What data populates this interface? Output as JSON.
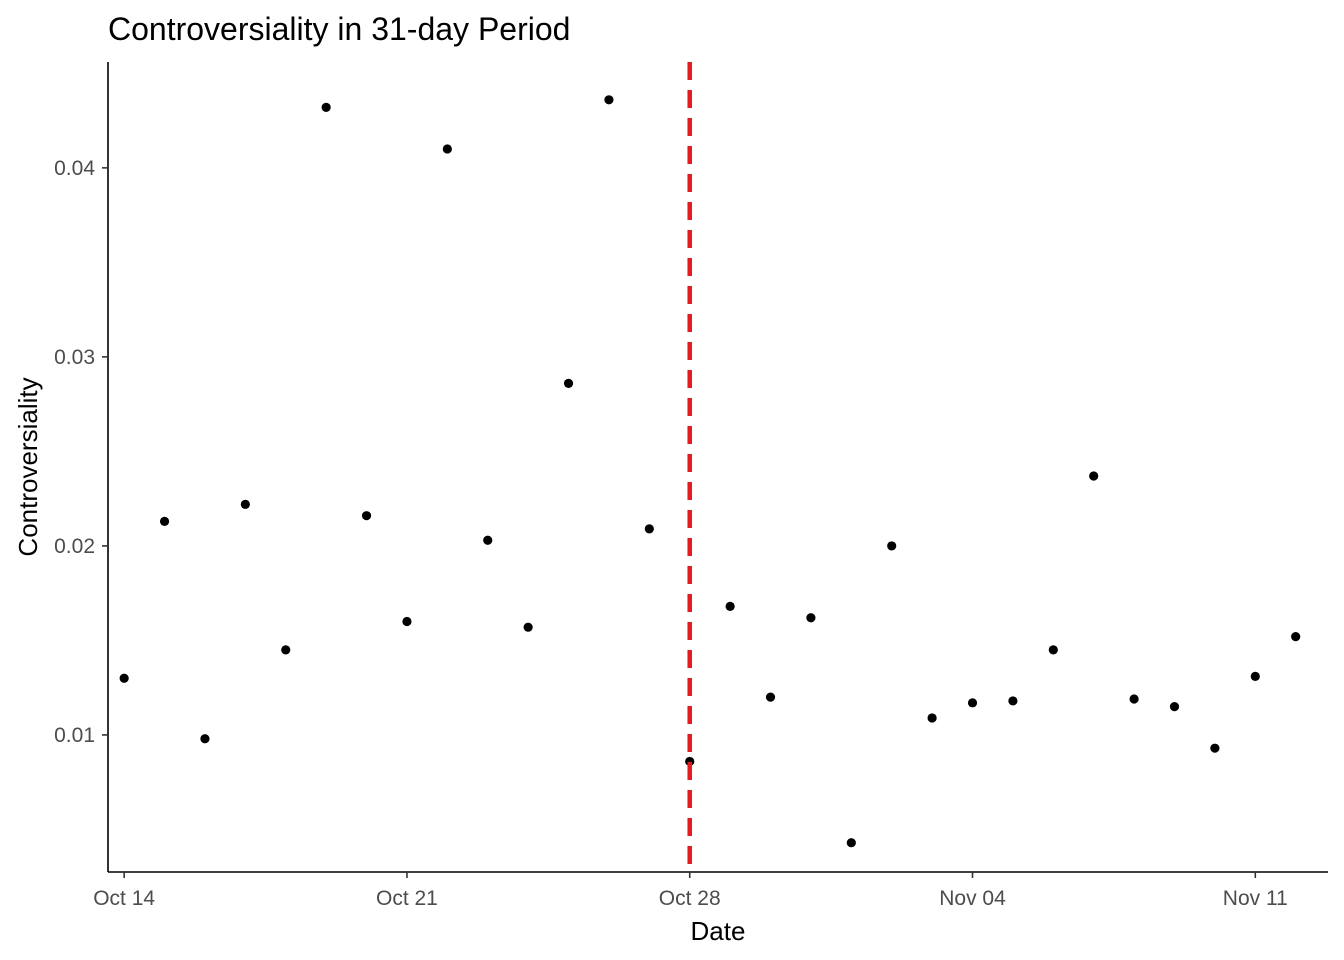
{
  "chart_data": {
    "type": "scatter",
    "title": "Controversiality in 31-day Period",
    "xlabel": "Date",
    "ylabel": "Controversiality",
    "x_ticks": [
      {
        "date": "2023-10-14",
        "label": "Oct 14"
      },
      {
        "date": "2023-10-21",
        "label": "Oct 21"
      },
      {
        "date": "2023-10-28",
        "label": "Oct 28"
      },
      {
        "date": "2023-11-04",
        "label": "Nov 04"
      },
      {
        "date": "2023-11-11",
        "label": "Nov 11"
      }
    ],
    "y_ticks": [
      {
        "value": 0.01,
        "label": "0.01"
      },
      {
        "value": 0.02,
        "label": "0.02"
      },
      {
        "value": 0.03,
        "label": "0.03"
      },
      {
        "value": 0.04,
        "label": "0.04"
      }
    ],
    "xlim": [
      "2023-10-13.6",
      "2023-11-12.8"
    ],
    "ylim": [
      0.00275,
      0.0456
    ],
    "grid": false,
    "vline": {
      "date": "2023-10-28",
      "color": "#e41a1c",
      "style": "dashed"
    },
    "point_color": "#000000",
    "points": [
      {
        "date": "2023-10-14",
        "value": 0.013
      },
      {
        "date": "2023-10-15",
        "value": 0.0213
      },
      {
        "date": "2023-10-16",
        "value": 0.0098
      },
      {
        "date": "2023-10-17",
        "value": 0.0222
      },
      {
        "date": "2023-10-18",
        "value": 0.0145
      },
      {
        "date": "2023-10-19",
        "value": 0.0432
      },
      {
        "date": "2023-10-20",
        "value": 0.0216
      },
      {
        "date": "2023-10-21",
        "value": 0.016
      },
      {
        "date": "2023-10-22",
        "value": 0.041
      },
      {
        "date": "2023-10-23",
        "value": 0.0203
      },
      {
        "date": "2023-10-24",
        "value": 0.0157
      },
      {
        "date": "2023-10-25",
        "value": 0.0286
      },
      {
        "date": "2023-10-26",
        "value": 0.0436
      },
      {
        "date": "2023-10-27",
        "value": 0.0209
      },
      {
        "date": "2023-10-28",
        "value": 0.0086
      },
      {
        "date": "2023-10-29",
        "value": 0.0168
      },
      {
        "date": "2023-10-30",
        "value": 0.012
      },
      {
        "date": "2023-10-31",
        "value": 0.0162
      },
      {
        "date": "2023-11-01",
        "value": 0.0043
      },
      {
        "date": "2023-11-02",
        "value": 0.02
      },
      {
        "date": "2023-11-03",
        "value": 0.0109
      },
      {
        "date": "2023-11-04",
        "value": 0.0117
      },
      {
        "date": "2023-11-05",
        "value": 0.0118
      },
      {
        "date": "2023-11-06",
        "value": 0.0145
      },
      {
        "date": "2023-11-07",
        "value": 0.0237
      },
      {
        "date": "2023-11-08",
        "value": 0.0119
      },
      {
        "date": "2023-11-09",
        "value": 0.0115
      },
      {
        "date": "2023-11-10",
        "value": 0.0093
      },
      {
        "date": "2023-11-11",
        "value": 0.0131
      },
      {
        "date": "2023-11-12",
        "value": 0.0152
      }
    ]
  }
}
